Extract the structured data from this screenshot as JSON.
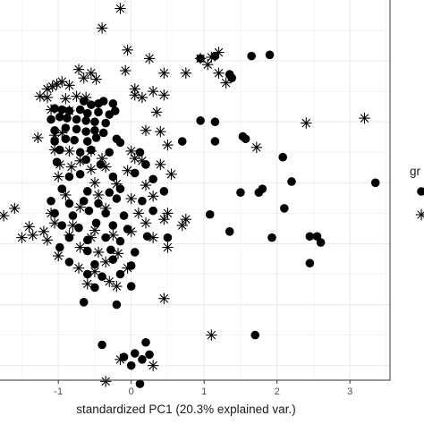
{
  "chart_data": {
    "type": "scatter",
    "title": "",
    "xlabel": "standardized PC1 (20.3% explained var.)",
    "ylabel": "",
    "xlim": [
      -1.8,
      3.55
    ],
    "ylim": [
      -1.17,
      1.95
    ],
    "x_ticks": [
      "-1",
      "0",
      "1",
      "2",
      "3"
    ],
    "x_tick_values": [
      -1,
      0,
      1,
      2,
      3
    ],
    "y_gridlines": [
      -1.05,
      -0.8,
      -0.55,
      -0.3,
      -0.05,
      0.2,
      0.45,
      0.7,
      0.95,
      1.2,
      1.45,
      1.7
    ],
    "grid": true,
    "legend": {
      "title": "gr",
      "placement": "right",
      "entries": [
        "",
        ""
      ]
    },
    "colors": {
      "points": "#000000",
      "grid": "#ebebeb",
      "panel_border": "#333333",
      "background": "#ffffff"
    },
    "series": [
      {
        "marker": "circle",
        "points": [
          [
            0.95,
            1.47
          ],
          [
            1.15,
            1.49
          ],
          [
            1.65,
            1.49
          ],
          [
            1.9,
            1.5
          ],
          [
            1.35,
            1.34
          ],
          [
            1.38,
            1.31
          ],
          [
            -0.65,
            1.12
          ],
          [
            -0.55,
            1.09
          ],
          [
            -0.45,
            1.1
          ],
          [
            -0.38,
            1.12
          ],
          [
            -0.25,
            1.1
          ],
          [
            -1.05,
            1.06
          ],
          [
            -0.95,
            1.05
          ],
          [
            -0.85,
            1.04
          ],
          [
            -0.7,
            1.05
          ],
          [
            -0.6,
            1.02
          ],
          [
            -0.45,
            1.03
          ],
          [
            -0.3,
            1.01
          ],
          [
            -0.22,
            1.04
          ],
          [
            -1.1,
            0.97
          ],
          [
            -0.98,
            0.99
          ],
          [
            -0.88,
            0.98
          ],
          [
            -0.75,
            0.97
          ],
          [
            -0.62,
            0.96
          ],
          [
            -0.5,
            0.95
          ],
          [
            -0.35,
            0.94
          ],
          [
            0.95,
            0.96
          ],
          [
            1.15,
            0.95
          ],
          [
            -1.05,
            0.88
          ],
          [
            -0.9,
            0.9
          ],
          [
            -0.75,
            0.89
          ],
          [
            -0.62,
            0.87
          ],
          [
            -0.5,
            0.88
          ],
          [
            -0.38,
            0.86
          ],
          [
            1.53,
            0.83
          ],
          [
            1.57,
            0.81
          ],
          [
            0.7,
            0.79
          ],
          [
            1.15,
            0.79
          ],
          [
            -1.05,
            0.79
          ],
          [
            -0.9,
            0.81
          ],
          [
            -0.78,
            0.8
          ],
          [
            -0.6,
            0.79
          ],
          [
            -0.48,
            0.82
          ],
          [
            -0.2,
            0.81
          ],
          [
            -0.15,
            0.78
          ],
          [
            -0.98,
            0.72
          ],
          [
            -0.7,
            0.7
          ],
          [
            -0.55,
            0.72
          ],
          [
            -0.3,
            0.7
          ],
          [
            0.12,
            0.7
          ],
          [
            -1.02,
            0.62
          ],
          [
            -0.62,
            0.64
          ],
          [
            -0.42,
            0.6
          ],
          [
            0.2,
            0.6
          ],
          [
            2.08,
            0.66
          ],
          [
            3.35,
            0.45
          ],
          [
            1.5,
            0.37
          ],
          [
            1.75,
            0.37
          ],
          [
            1.8,
            0.4
          ],
          [
            2.2,
            0.46
          ],
          [
            -0.85,
            0.5
          ],
          [
            -0.7,
            0.52
          ],
          [
            -0.25,
            0.5
          ],
          [
            0.05,
            0.53
          ],
          [
            0.3,
            0.48
          ],
          [
            -0.95,
            0.4
          ],
          [
            -0.6,
            0.38
          ],
          [
            -0.3,
            0.37
          ],
          [
            -0.15,
            0.4
          ],
          [
            0.45,
            0.38
          ],
          [
            -1.1,
            0.3
          ],
          [
            -0.85,
            0.28
          ],
          [
            -0.65,
            0.3
          ],
          [
            -0.45,
            0.28
          ],
          [
            -0.2,
            0.32
          ],
          [
            0.15,
            0.3
          ],
          [
            -1.05,
            0.2
          ],
          [
            -0.8,
            0.18
          ],
          [
            -0.58,
            0.22
          ],
          [
            -0.35,
            0.2
          ],
          [
            -0.1,
            0.18
          ],
          [
            0.3,
            0.22
          ],
          [
            1.08,
            0.19
          ],
          [
            -0.95,
            0.1
          ],
          [
            -0.72,
            0.08
          ],
          [
            -0.48,
            0.12
          ],
          [
            -0.25,
            0.1
          ],
          [
            -0.05,
            0.07
          ],
          [
            2.1,
            0.24
          ],
          [
            1.35,
            0.05
          ],
          [
            -0.85,
            0.0
          ],
          [
            -0.6,
            -0.02
          ],
          [
            -0.35,
            0.0
          ],
          [
            -0.15,
            -0.03
          ],
          [
            0.22,
            0.01
          ],
          [
            0.5,
            0.0
          ],
          [
            1.93,
            0.0
          ],
          [
            2.45,
            0.01
          ],
          [
            2.55,
            0.01
          ],
          [
            2.6,
            -0.04
          ],
          [
            -0.98,
            -0.08
          ],
          [
            -0.6,
            -0.11
          ],
          [
            -0.28,
            -0.1
          ],
          [
            0.05,
            -0.12
          ],
          [
            -0.85,
            -0.2
          ],
          [
            -0.5,
            -0.22
          ],
          [
            -0.25,
            -0.18
          ],
          [
            0.0,
            -0.23
          ],
          [
            -0.6,
            -0.3
          ],
          [
            -0.4,
            -0.32
          ],
          [
            -0.15,
            -0.3
          ],
          [
            2.45,
            -0.21
          ],
          [
            -0.5,
            -0.41
          ],
          [
            0.0,
            -0.4
          ],
          [
            -0.65,
            -0.53
          ],
          [
            -0.2,
            -0.55
          ],
          [
            1.7,
            -0.8
          ],
          [
            -0.4,
            -0.88
          ],
          [
            0.2,
            -0.86
          ],
          [
            0.05,
            -0.95
          ],
          [
            -0.1,
            -0.98
          ],
          [
            0.0,
            -1.05
          ],
          [
            0.15,
            -1.0
          ],
          [
            0.25,
            -0.96
          ],
          [
            0.12,
            -1.2
          ]
        ]
      },
      {
        "marker": "star",
        "points": [
          [
            -0.15,
            1.88
          ],
          [
            -0.4,
            1.72
          ],
          [
            -0.05,
            1.54
          ],
          [
            0.25,
            1.47
          ],
          [
            0.45,
            1.35
          ],
          [
            0.75,
            1.35
          ],
          [
            1.05,
            1.42
          ],
          [
            1.2,
            1.35
          ],
          [
            1.3,
            1.27
          ],
          [
            0.95,
            1.47
          ],
          [
            1.1,
            1.48
          ],
          [
            1.2,
            1.52
          ],
          [
            -0.72,
            1.38
          ],
          [
            -0.55,
            1.35
          ],
          [
            -0.48,
            1.3
          ],
          [
            -0.65,
            1.31
          ],
          [
            -0.08,
            1.37
          ],
          [
            -1.15,
            1.22
          ],
          [
            -1.08,
            1.24
          ],
          [
            -1.02,
            1.26
          ],
          [
            -0.95,
            1.28
          ],
          [
            -0.85,
            1.25
          ],
          [
            0.05,
            1.22
          ],
          [
            0.3,
            1.2
          ],
          [
            0.45,
            1.17
          ],
          [
            -1.25,
            1.16
          ],
          [
            -1.15,
            1.15
          ],
          [
            -0.9,
            1.14
          ],
          [
            -0.75,
            1.16
          ],
          [
            -0.62,
            1.15
          ],
          [
            0.05,
            1.17
          ],
          [
            0.15,
            1.15
          ],
          [
            -1.1,
            1.05
          ],
          [
            -0.85,
            1.04
          ],
          [
            0.35,
            1.03
          ],
          [
            2.4,
            0.94
          ],
          [
            3.2,
            0.98
          ],
          [
            -1.28,
            0.82
          ],
          [
            -1.05,
            0.84
          ],
          [
            -0.95,
            0.86
          ],
          [
            0.2,
            0.88
          ],
          [
            0.4,
            0.87
          ],
          [
            -1.05,
            0.72
          ],
          [
            -0.85,
            0.71
          ],
          [
            -0.55,
            0.71
          ],
          [
            0.0,
            0.71
          ],
          [
            0.5,
            0.76
          ],
          [
            1.72,
            0.74
          ],
          [
            -0.7,
            0.63
          ],
          [
            -0.4,
            0.65
          ],
          [
            0.05,
            0.65
          ],
          [
            0.15,
            0.63
          ],
          [
            0.4,
            0.6
          ],
          [
            -0.98,
            0.6
          ],
          [
            -0.82,
            0.58
          ],
          [
            -0.55,
            0.56
          ],
          [
            -0.35,
            0.58
          ],
          [
            -0.05,
            0.55
          ],
          [
            0.55,
            0.52
          ],
          [
            -1.0,
            0.5
          ],
          [
            -0.5,
            0.45
          ],
          [
            -0.2,
            0.44
          ],
          [
            0.2,
            0.43
          ],
          [
            -0.9,
            0.35
          ],
          [
            -0.45,
            0.35
          ],
          [
            0.0,
            0.32
          ],
          [
            0.3,
            0.34
          ],
          [
            -1.6,
            0.24
          ],
          [
            -1.75,
            0.18
          ],
          [
            -1.1,
            0.2
          ],
          [
            -0.7,
            0.25
          ],
          [
            -0.35,
            0.24
          ],
          [
            0.1,
            0.2
          ],
          [
            0.5,
            0.2
          ],
          [
            -1.4,
            0.09
          ],
          [
            -1.2,
            0.05
          ],
          [
            -1.05,
            0.12
          ],
          [
            -0.8,
            0.1
          ],
          [
            -0.5,
            0.06
          ],
          [
            0.2,
            0.12
          ],
          [
            0.45,
            0.15
          ],
          [
            0.75,
            0.15
          ],
          [
            -1.5,
            0.0
          ],
          [
            -1.35,
            0.02
          ],
          [
            -1.15,
            -0.02
          ],
          [
            -0.85,
            0.02
          ],
          [
            -0.55,
            0.0
          ],
          [
            -0.25,
            0.02
          ],
          [
            0.0,
            0.05
          ],
          [
            0.3,
            0.0
          ],
          [
            0.7,
            0.1
          ],
          [
            -1.0,
            -0.15
          ],
          [
            -0.7,
            -0.08
          ],
          [
            -0.45,
            -0.12
          ],
          [
            -0.18,
            -0.13
          ],
          [
            0.5,
            -0.08
          ],
          [
            -0.72,
            -0.25
          ],
          [
            -0.5,
            -0.28
          ],
          [
            -0.35,
            -0.2
          ],
          [
            -0.05,
            -0.25
          ],
          [
            -0.6,
            -0.38
          ],
          [
            -0.3,
            -0.36
          ],
          [
            -0.2,
            -0.4
          ],
          [
            0.45,
            -0.5
          ],
          [
            1.1,
            -0.8
          ],
          [
            -0.15,
            -1.0
          ],
          [
            0.3,
            -1.05
          ],
          [
            -0.35,
            -1.18
          ]
        ]
      }
    ]
  }
}
